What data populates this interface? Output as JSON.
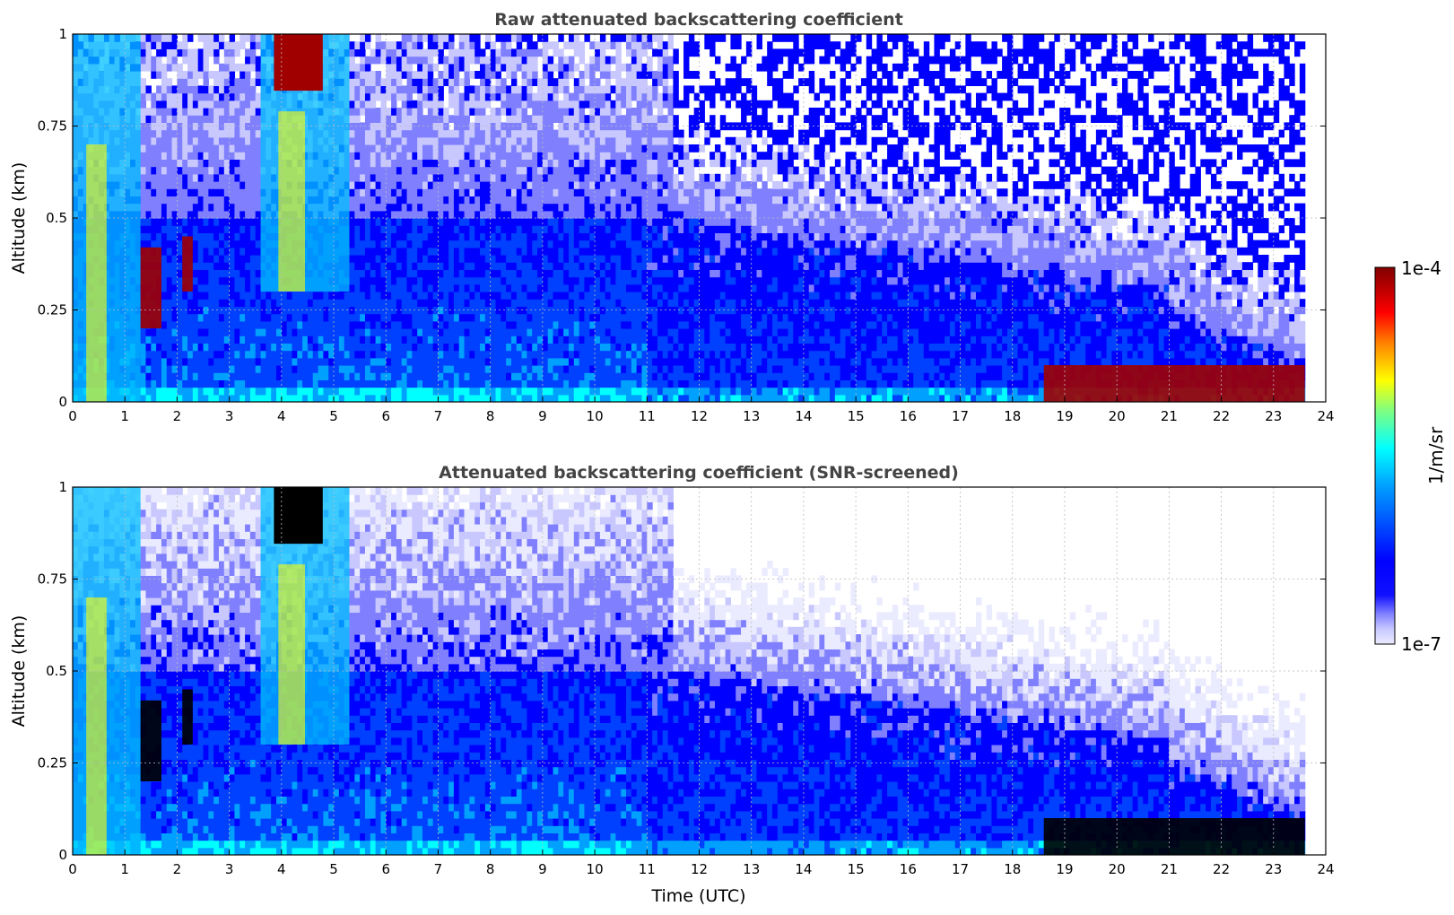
{
  "chart_data": [
    {
      "type": "heatmap",
      "title": "Raw attenuated backscattering coefficient",
      "xlabel": "",
      "ylabel": "Altitude (km)",
      "xlim": [
        0,
        24
      ],
      "ylim": [
        0,
        1
      ],
      "x_ticks": [
        "0",
        "1",
        "2",
        "3",
        "4",
        "5",
        "6",
        "7",
        "8",
        "9",
        "10",
        "11",
        "12",
        "13",
        "14",
        "15",
        "16",
        "17",
        "18",
        "19",
        "20",
        "21",
        "22",
        "23",
        "24"
      ],
      "y_ticks": [
        "0",
        "0.25",
        "0.5",
        "0.75",
        "1"
      ],
      "grid": true,
      "screened": false,
      "features": [
        {
          "t": [
            0.0,
            1.3
          ],
          "z": [
            0.0,
            1.0
          ],
          "level": "high"
        },
        {
          "t": [
            1.3,
            1.7
          ],
          "z": [
            0.2,
            0.42
          ],
          "level": "very high"
        },
        {
          "t": [
            2.1,
            2.3
          ],
          "z": [
            0.3,
            0.45
          ],
          "level": "very high"
        },
        {
          "t": [
            3.6,
            5.3
          ],
          "z": [
            0.3,
            1.0
          ],
          "level": "high",
          "top": "very high"
        },
        {
          "t": [
            18.6,
            23.6
          ],
          "z": [
            0.0,
            0.1
          ],
          "level": "very high"
        }
      ],
      "data_end_hour": 23.6
    },
    {
      "type": "heatmap",
      "title": "Attenuated backscattering coefficient (SNR-screened)",
      "xlabel": "Time (UTC)",
      "ylabel": "Altitude (km)",
      "xlim": [
        0,
        24
      ],
      "ylim": [
        0,
        1
      ],
      "x_ticks": [
        "0",
        "1",
        "2",
        "3",
        "4",
        "5",
        "6",
        "7",
        "8",
        "9",
        "10",
        "11",
        "12",
        "13",
        "14",
        "15",
        "16",
        "17",
        "18",
        "19",
        "20",
        "21",
        "22",
        "23",
        "24"
      ],
      "y_ticks": [
        "0",
        "0.25",
        "0.5",
        "0.75",
        "1"
      ],
      "grid": true,
      "screened": true,
      "features": [
        {
          "t": [
            0.0,
            1.3
          ],
          "z": [
            0.0,
            1.0
          ],
          "level": "high"
        },
        {
          "t": [
            1.3,
            1.7
          ],
          "z": [
            0.2,
            0.42
          ],
          "level": "saturated"
        },
        {
          "t": [
            2.1,
            2.3
          ],
          "z": [
            0.3,
            0.45
          ],
          "level": "saturated"
        },
        {
          "t": [
            3.6,
            5.3
          ],
          "z": [
            0.3,
            1.0
          ],
          "level": "high",
          "top": "saturated"
        },
        {
          "t": [
            18.6,
            23.6
          ],
          "z": [
            0.0,
            0.1
          ],
          "level": "saturated"
        }
      ],
      "data_end_hour": 23.6
    }
  ],
  "colorbar": {
    "label": "1/m/sr",
    "max_label": "1e-4",
    "min_label": "1e-7",
    "scale": "log",
    "range": [
      1e-07,
      0.0001
    ],
    "colormap": [
      "#ebebff",
      "#c8c8ff",
      "#8080ff",
      "#0000ff",
      "#0040ff",
      "#00a0ff",
      "#00ffff",
      "#80ff80",
      "#ffff00",
      "#ff8000",
      "#ff0000",
      "#800000"
    ]
  }
}
